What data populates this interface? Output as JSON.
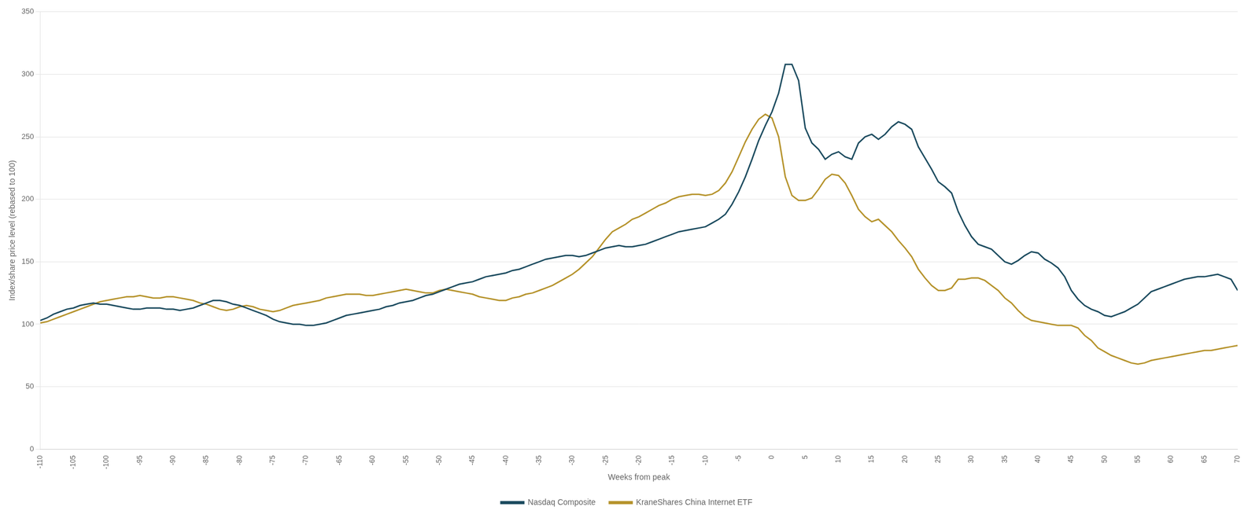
{
  "chart_data": {
    "type": "line",
    "xlabel": "Weeks from peak",
    "ylabel": "Index/share price level (rebased to 100)",
    "x": [
      -110,
      -109,
      -108,
      -107,
      -106,
      -105,
      -104,
      -103,
      -102,
      -101,
      -100,
      -99,
      -98,
      -97,
      -96,
      -95,
      -94,
      -93,
      -92,
      -91,
      -90,
      -89,
      -88,
      -87,
      -86,
      -85,
      -84,
      -83,
      -82,
      -81,
      -80,
      -79,
      -78,
      -77,
      -76,
      -75,
      -74,
      -73,
      -72,
      -71,
      -70,
      -69,
      -68,
      -67,
      -66,
      -65,
      -64,
      -63,
      -62,
      -61,
      -60,
      -59,
      -58,
      -57,
      -56,
      -55,
      -54,
      -53,
      -52,
      -51,
      -50,
      -49,
      -48,
      -47,
      -46,
      -45,
      -44,
      -43,
      -42,
      -41,
      -40,
      -39,
      -38,
      -37,
      -36,
      -35,
      -34,
      -33,
      -32,
      -31,
      -30,
      -29,
      -28,
      -27,
      -26,
      -25,
      -24,
      -23,
      -22,
      -21,
      -20,
      -19,
      -18,
      -17,
      -16,
      -15,
      -14,
      -13,
      -12,
      -11,
      -10,
      -9,
      -8,
      -7,
      -6,
      -5,
      -4,
      -3,
      -2,
      -1,
      0,
      1,
      2,
      3,
      4,
      5,
      6,
      7,
      8,
      9,
      10,
      11,
      12,
      13,
      14,
      15,
      16,
      17,
      18,
      19,
      20,
      21,
      22,
      23,
      24,
      25,
      26,
      27,
      28,
      29,
      30,
      31,
      32,
      33,
      34,
      35,
      36,
      37,
      38,
      39,
      40,
      41,
      42,
      43,
      44,
      45,
      46,
      47,
      48,
      49,
      50,
      51,
      52,
      53,
      54,
      55,
      56,
      57,
      58,
      59,
      60,
      61,
      62,
      63,
      64,
      65,
      66,
      67,
      68,
      69,
      70
    ],
    "series": [
      {
        "name": "Nasdaq Composite",
        "color": "#1a4a5e",
        "values": [
          103,
          105,
          108,
          110,
          112,
          113,
          115,
          116,
          117,
          116,
          116,
          115,
          114,
          113,
          112,
          112,
          113,
          113,
          113,
          112,
          112,
          111,
          112,
          113,
          115,
          117,
          119,
          119,
          118,
          116,
          115,
          113,
          111,
          109,
          107,
          104,
          102,
          101,
          100,
          100,
          99,
          99,
          100,
          101,
          103,
          105,
          107,
          108,
          109,
          110,
          111,
          112,
          114,
          115,
          117,
          118,
          119,
          121,
          123,
          124,
          126,
          128,
          130,
          132,
          133,
          134,
          136,
          138,
          139,
          140,
          141,
          143,
          144,
          146,
          148,
          150,
          152,
          153,
          154,
          155,
          155,
          154,
          155,
          157,
          159,
          161,
          162,
          163,
          162,
          162,
          163,
          164,
          166,
          168,
          170,
          172,
          174,
          175,
          176,
          177,
          178,
          181,
          184,
          188,
          196,
          206,
          218,
          232,
          247,
          259,
          270,
          285,
          308,
          308,
          295,
          257,
          245,
          240,
          232,
          236,
          238,
          234,
          232,
          245,
          250,
          252,
          248,
          252,
          258,
          262,
          260,
          256,
          242,
          233,
          224,
          214,
          210,
          205,
          190,
          179,
          170,
          164,
          162,
          160,
          155,
          150,
          148,
          151,
          155,
          158,
          157,
          152,
          149,
          145,
          138,
          127,
          120,
          115,
          112,
          110,
          107,
          106,
          108,
          110,
          113,
          116,
          121,
          126,
          128,
          130,
          132,
          134,
          136,
          137,
          138,
          138,
          139,
          140,
          138,
          136,
          127
        ]
      },
      {
        "name": "KraneShares China Internet ETF",
        "color": "#b5922a",
        "values": [
          101,
          102,
          104,
          106,
          108,
          110,
          112,
          114,
          116,
          118,
          119,
          120,
          121,
          122,
          122,
          123,
          122,
          121,
          121,
          122,
          122,
          121,
          120,
          119,
          117,
          116,
          114,
          112,
          111,
          112,
          114,
          115,
          114,
          112,
          111,
          110,
          111,
          113,
          115,
          116,
          117,
          118,
          119,
          121,
          122,
          123,
          124,
          124,
          124,
          123,
          123,
          124,
          125,
          126,
          127,
          128,
          127,
          126,
          125,
          125,
          127,
          128,
          127,
          126,
          125,
          124,
          122,
          121,
          120,
          119,
          119,
          121,
          122,
          124,
          125,
          127,
          129,
          131,
          134,
          137,
          140,
          144,
          149,
          154,
          161,
          168,
          174,
          177,
          180,
          184,
          186,
          189,
          192,
          195,
          197,
          200,
          202,
          203,
          204,
          204,
          203,
          204,
          207,
          213,
          222,
          234,
          246,
          256,
          264,
          268,
          265,
          250,
          218,
          203,
          199,
          199,
          201,
          208,
          216,
          220,
          219,
          213,
          203,
          192,
          186,
          182,
          184,
          179,
          174,
          167,
          161,
          154,
          144,
          137,
          131,
          127,
          127,
          129,
          136,
          136,
          137,
          137,
          135,
          131,
          127,
          121,
          117,
          111,
          106,
          103,
          102,
          101,
          100,
          99,
          99,
          99,
          97,
          91,
          87,
          81,
          78,
          75,
          73,
          71,
          69,
          68,
          69,
          71,
          72,
          73,
          74,
          75,
          76,
          77,
          78,
          79,
          79,
          80,
          81,
          82,
          83
        ]
      }
    ],
    "xlim": [
      -110,
      70
    ],
    "ylim": [
      0,
      350
    ],
    "xticks": [
      -110,
      -105,
      -100,
      -95,
      -90,
      -85,
      -80,
      -75,
      -70,
      -65,
      -60,
      -55,
      -50,
      -45,
      -40,
      -35,
      -30,
      -25,
      -20,
      -15,
      -10,
      -5,
      0,
      5,
      10,
      15,
      20,
      25,
      30,
      35,
      40,
      45,
      50,
      55,
      60,
      65,
      70
    ],
    "yticks": [
      0,
      50,
      100,
      150,
      200,
      250,
      300,
      350
    ],
    "grid": "y",
    "legend": "bottom"
  }
}
